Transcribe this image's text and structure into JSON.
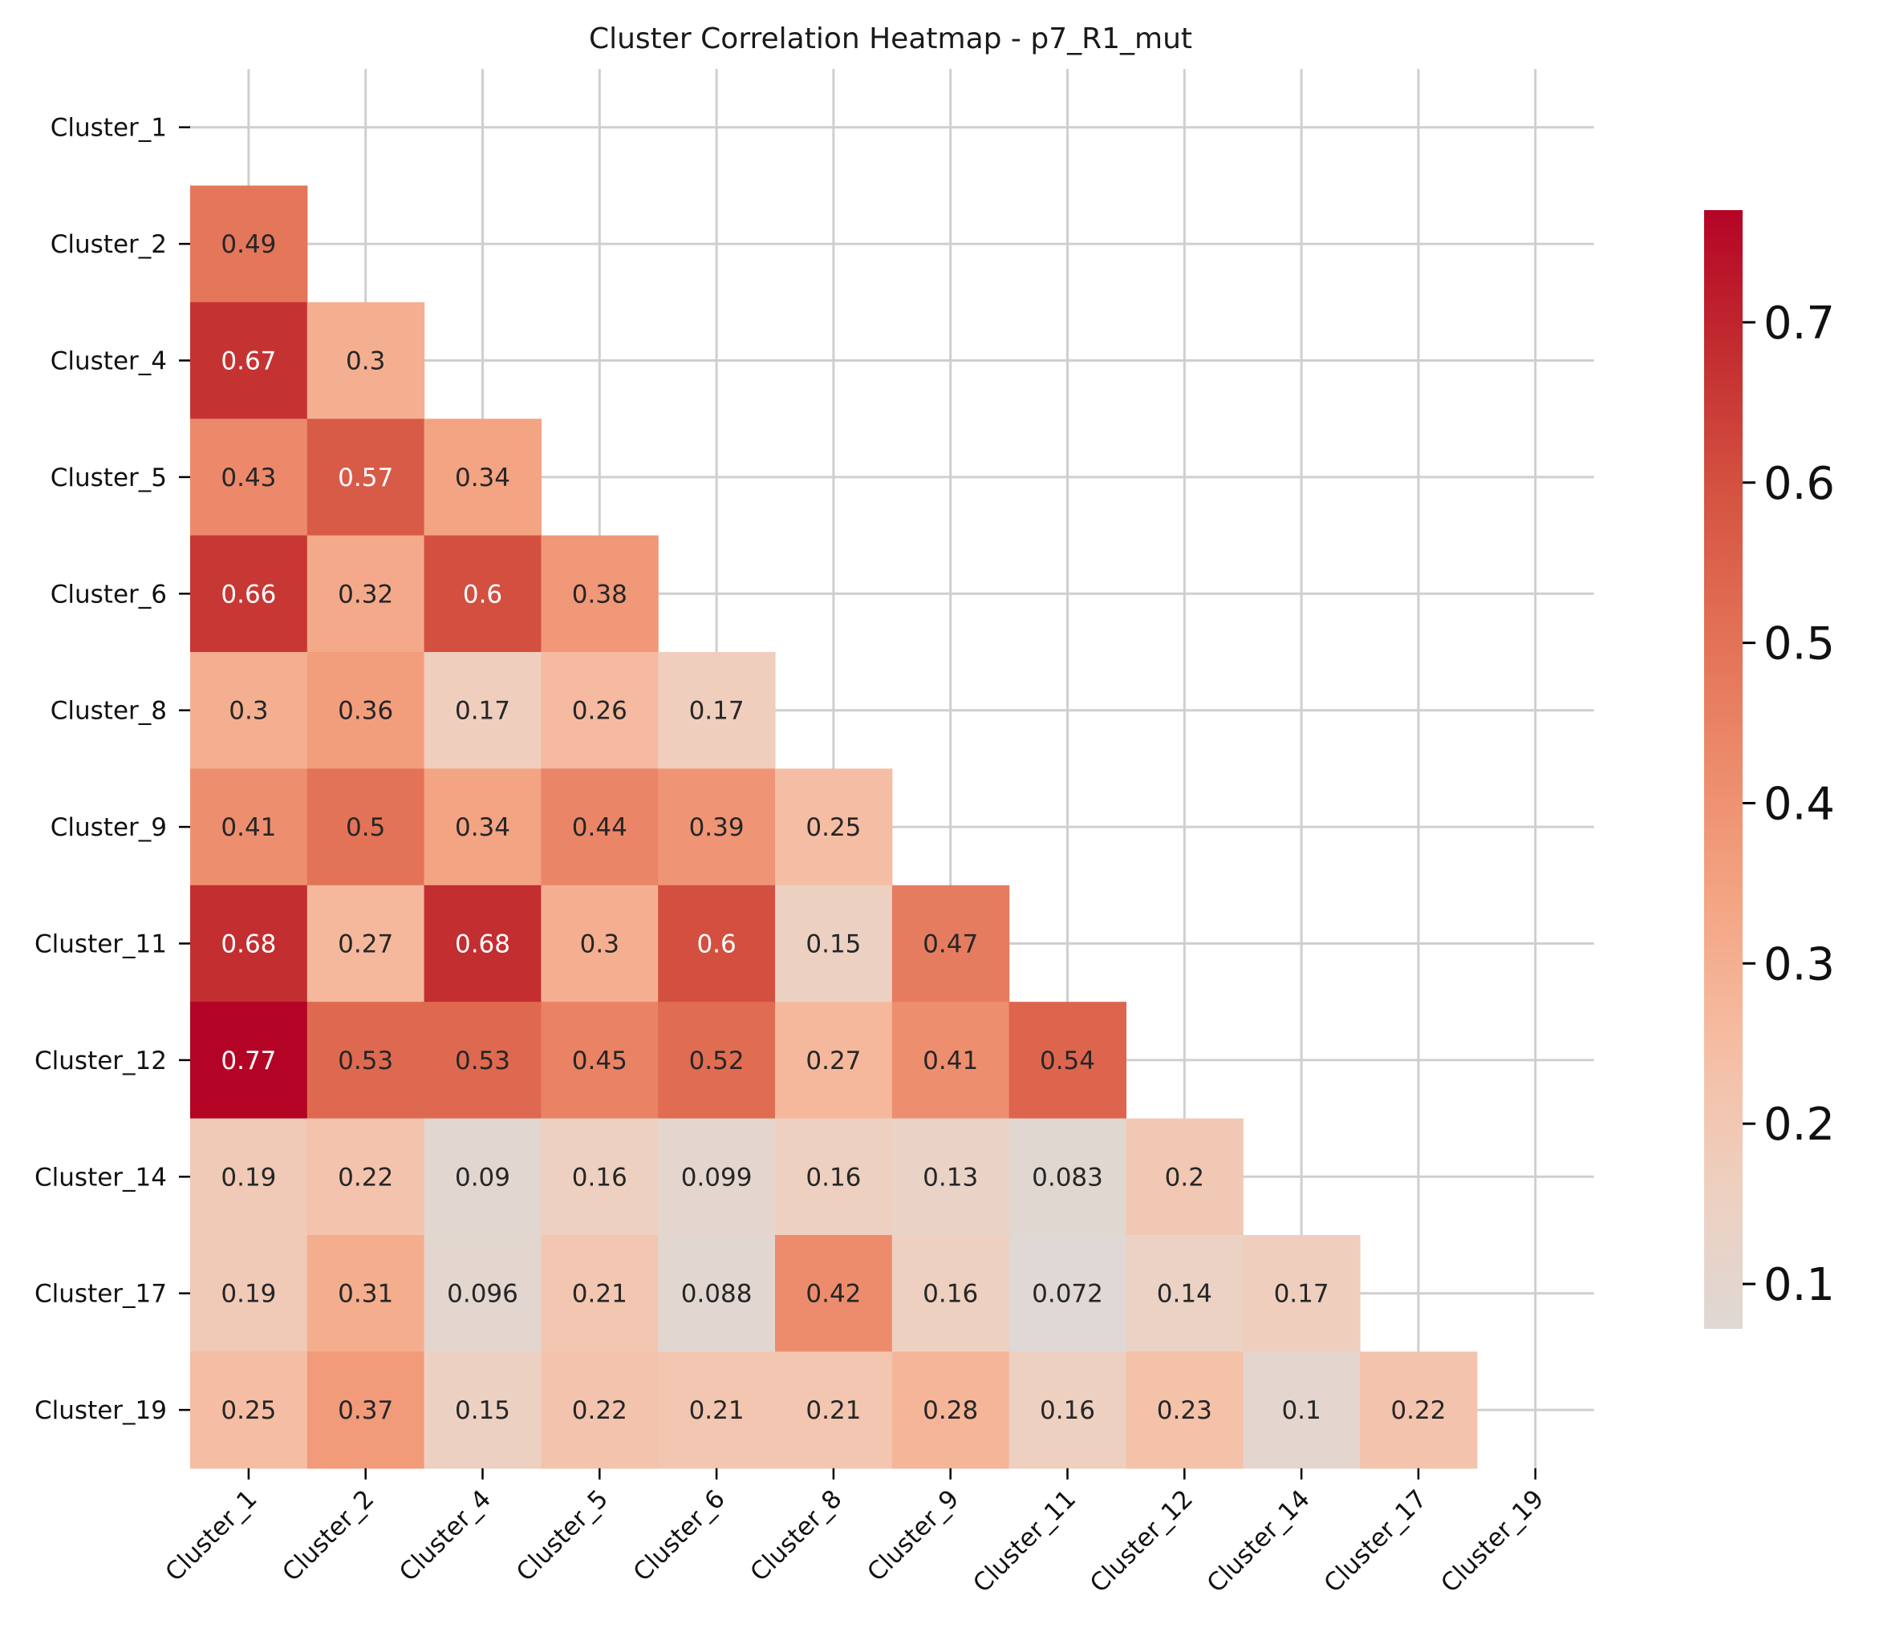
{
  "chart_data": {
    "type": "heatmap",
    "title": "Cluster Correlation Heatmap - p7_R1_mut",
    "xlabel": "",
    "ylabel": "",
    "mask": "upper-triangle-including-diagonal",
    "grid": true,
    "x_categories": [
      "Cluster_1",
      "Cluster_2",
      "Cluster_4",
      "Cluster_5",
      "Cluster_6",
      "Cluster_8",
      "Cluster_9",
      "Cluster_11",
      "Cluster_12",
      "Cluster_14",
      "Cluster_17",
      "Cluster_19"
    ],
    "y_categories": [
      "Cluster_1",
      "Cluster_2",
      "Cluster_4",
      "Cluster_5",
      "Cluster_6",
      "Cluster_8",
      "Cluster_9",
      "Cluster_11",
      "Cluster_12",
      "Cluster_14",
      "Cluster_17",
      "Cluster_19"
    ],
    "rows": [
      [],
      [
        "0.49"
      ],
      [
        "0.67",
        "0.3"
      ],
      [
        "0.43",
        "0.57",
        "0.34"
      ],
      [
        "0.66",
        "0.32",
        "0.6",
        "0.38"
      ],
      [
        "0.3",
        "0.36",
        "0.17",
        "0.26",
        "0.17"
      ],
      [
        "0.41",
        "0.5",
        "0.34",
        "0.44",
        "0.39",
        "0.25"
      ],
      [
        "0.68",
        "0.27",
        "0.68",
        "0.3",
        "0.6",
        "0.15",
        "0.47"
      ],
      [
        "0.77",
        "0.53",
        "0.53",
        "0.45",
        "0.52",
        "0.27",
        "0.41",
        "0.54"
      ],
      [
        "0.19",
        "0.22",
        "0.09",
        "0.16",
        "0.099",
        "0.16",
        "0.13",
        "0.083",
        "0.2"
      ],
      [
        "0.19",
        "0.31",
        "0.096",
        "0.21",
        "0.088",
        "0.42",
        "0.16",
        "0.072",
        "0.14",
        "0.17"
      ],
      [
        "0.25",
        "0.37",
        "0.15",
        "0.22",
        "0.21",
        "0.21",
        "0.28",
        "0.16",
        "0.23",
        "0.1",
        "0.22"
      ]
    ],
    "colorbar": {
      "colormap": "coolwarm-upper-half",
      "range": [
        0.072,
        0.77
      ],
      "ticks": [
        "0.1",
        "0.2",
        "0.3",
        "0.4",
        "0.5",
        "0.6",
        "0.7"
      ]
    },
    "colors": {
      "low": "#dfd8d4",
      "high": "#b40326",
      "grid": "#cfcfcf"
    }
  }
}
